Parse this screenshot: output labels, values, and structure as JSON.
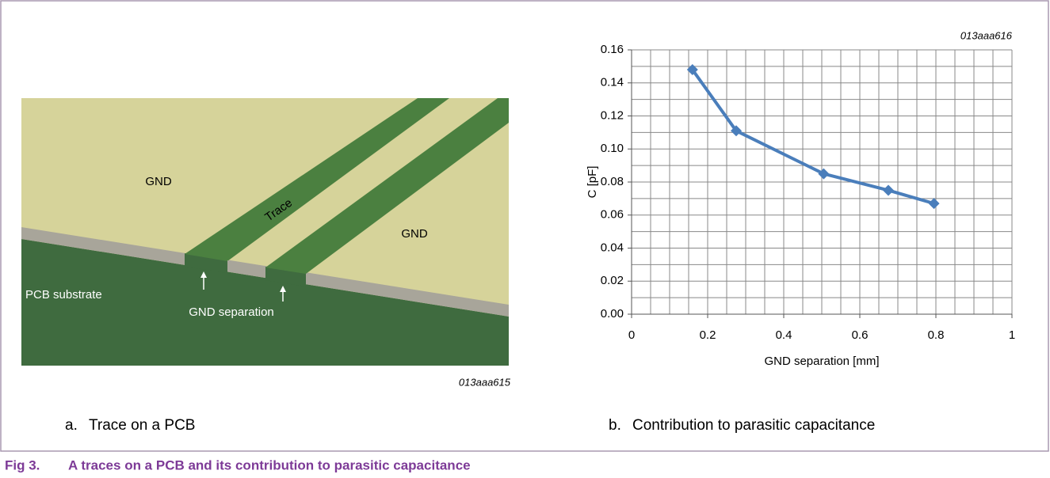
{
  "figure": {
    "label": "Fig 3.",
    "caption": "A traces on a PCB and its contribution to parasitic capacitance"
  },
  "panel_a": {
    "code": "013aaa615",
    "letter": "a.",
    "caption": "Trace on a PCB",
    "labels": {
      "gnd_left": "GND",
      "trace": "Trace",
      "gnd_right": "GND",
      "substrate": "PCB substrate",
      "separation": "GND separation"
    }
  },
  "panel_b": {
    "letter": "b.",
    "caption": "Contribution to parasitic capacitance"
  },
  "chart_data": {
    "type": "line",
    "subtitle": "013aaa616",
    "x_label": "GND separation [mm]",
    "y_label": "C [pF]",
    "x": [
      0.16,
      0.275,
      0.505,
      0.675,
      0.795
    ],
    "values": [
      0.148,
      0.111,
      0.085,
      0.075,
      0.067
    ],
    "color": "#4a7ebb",
    "xlim": [
      0,
      1
    ],
    "ylim": [
      0,
      0.16
    ],
    "xticks": [
      0,
      0.2,
      0.4,
      0.6,
      0.8,
      1
    ],
    "yticks": [
      {
        "value": 0,
        "label": "0.00"
      },
      0.02,
      0.04,
      0.06,
      0.08,
      {
        "value": 0.1,
        "label": "0.10"
      },
      0.12,
      0.14,
      0.16
    ],
    "grid": true,
    "x_grid_step": 0.05,
    "y_grid_step": 0.01
  }
}
